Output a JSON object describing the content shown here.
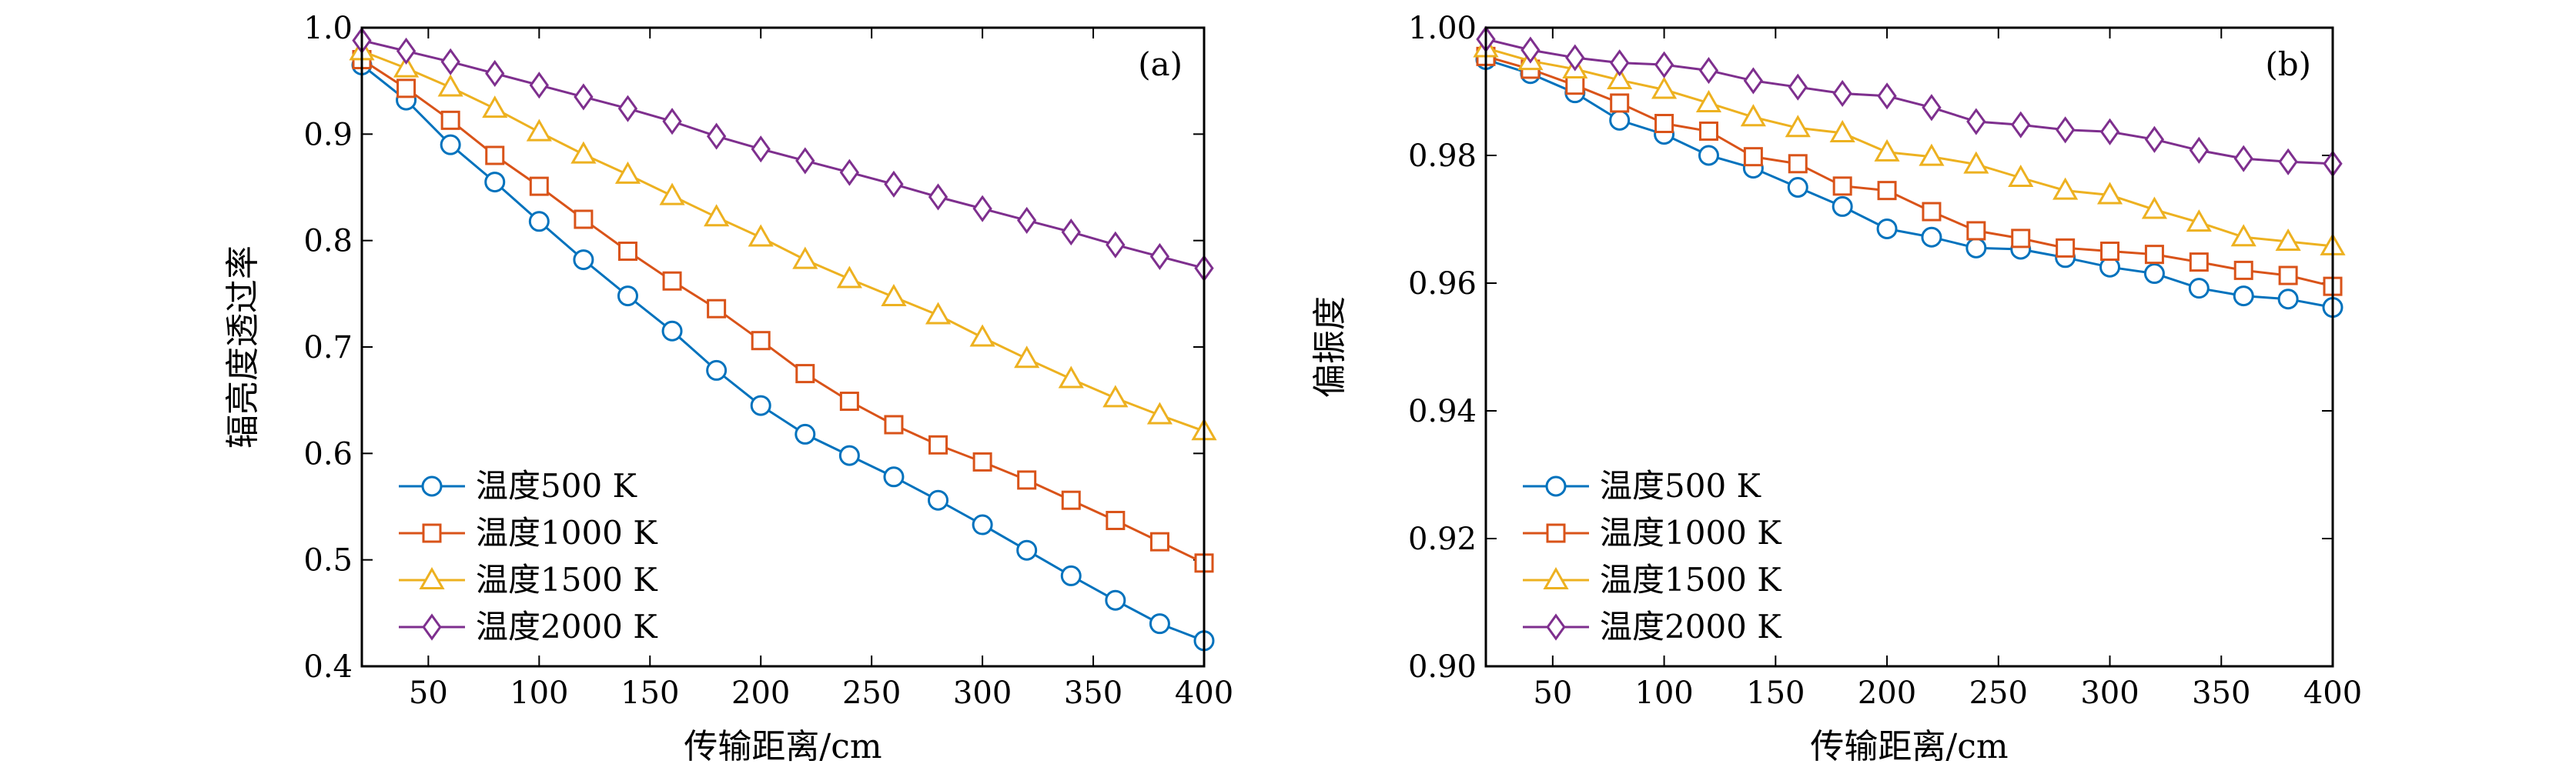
{
  "colors": {
    "s500": "#0072BD",
    "s1000": "#D95319",
    "s1500": "#EDB120",
    "s2000": "#7E2F8E"
  },
  "chart_data": [
    {
      "type": "line",
      "panel_label": "(a)",
      "xlabel": "传输距离/cm",
      "ylabel": "辐亮度透过率",
      "xlim": [
        20,
        400
      ],
      "ylim": [
        0.4,
        1.0
      ],
      "xticks": [
        50,
        100,
        150,
        200,
        250,
        300,
        350,
        400
      ],
      "xtick_labels": [
        "50",
        "100",
        "150",
        "200",
        "250",
        "300",
        "350",
        "400"
      ],
      "yticks": [
        0.4,
        0.5,
        0.6,
        0.7,
        0.8,
        0.9,
        1.0
      ],
      "ytick_labels": [
        "0.4",
        "0.5",
        "0.6",
        "0.7",
        "0.8",
        "0.9",
        "1.0"
      ],
      "legend_position": "bottom-left",
      "x": [
        20,
        40,
        60,
        80,
        100,
        120,
        140,
        160,
        180,
        200,
        220,
        240,
        260,
        280,
        300,
        320,
        340,
        360,
        380,
        400
      ],
      "series": [
        {
          "name": "温度500 K",
          "marker": "circle",
          "color_key": "s500",
          "values": [
            0.965,
            0.932,
            0.89,
            0.855,
            0.818,
            0.782,
            0.748,
            0.715,
            0.678,
            0.645,
            0.618,
            0.598,
            0.578,
            0.556,
            0.533,
            0.509,
            0.485,
            0.462,
            0.44,
            0.424
          ]
        },
        {
          "name": "温度1000 K",
          "marker": "square",
          "color_key": "s1000",
          "values": [
            0.97,
            0.943,
            0.913,
            0.88,
            0.851,
            0.82,
            0.79,
            0.762,
            0.736,
            0.706,
            0.675,
            0.649,
            0.627,
            0.608,
            0.592,
            0.575,
            0.556,
            0.537,
            0.517,
            0.497
          ]
        },
        {
          "name": "温度1500 K",
          "marker": "triangle",
          "color_key": "s1500",
          "values": [
            0.978,
            0.962,
            0.944,
            0.924,
            0.902,
            0.881,
            0.862,
            0.842,
            0.822,
            0.803,
            0.782,
            0.764,
            0.747,
            0.73,
            0.709,
            0.689,
            0.67,
            0.652,
            0.636,
            0.621
          ]
        },
        {
          "name": "温度2000 K",
          "marker": "diamond",
          "color_key": "s2000",
          "values": [
            0.988,
            0.978,
            0.968,
            0.957,
            0.946,
            0.935,
            0.924,
            0.912,
            0.898,
            0.886,
            0.875,
            0.864,
            0.853,
            0.841,
            0.83,
            0.819,
            0.808,
            0.796,
            0.785,
            0.774
          ]
        }
      ]
    },
    {
      "type": "line",
      "panel_label": "(b)",
      "xlabel": "传输距离/cm",
      "ylabel": "偏振度",
      "xlim": [
        20,
        400
      ],
      "ylim": [
        0.9,
        1.0
      ],
      "xticks": [
        50,
        100,
        150,
        200,
        250,
        300,
        350,
        400
      ],
      "xtick_labels": [
        "50",
        "100",
        "150",
        "200",
        "250",
        "300",
        "350",
        "400"
      ],
      "yticks": [
        0.9,
        0.92,
        0.94,
        0.96,
        0.98,
        1.0
      ],
      "ytick_labels": [
        "0.90",
        "0.92",
        "0.94",
        "0.96",
        "0.98",
        "1.00"
      ],
      "legend_position": "bottom-left",
      "x": [
        20,
        40,
        60,
        80,
        100,
        120,
        140,
        160,
        180,
        200,
        220,
        240,
        260,
        280,
        300,
        320,
        340,
        360,
        380,
        400
      ],
      "series": [
        {
          "name": "温度500 K",
          "marker": "circle",
          "color_key": "s500",
          "values": [
            0.995,
            0.9928,
            0.9898,
            0.9855,
            0.9833,
            0.98,
            0.978,
            0.975,
            0.972,
            0.9685,
            0.9672,
            0.9655,
            0.9653,
            0.964,
            0.9625,
            0.9615,
            0.9592,
            0.958,
            0.9575,
            0.9562
          ]
        },
        {
          "name": "温度1000 K",
          "marker": "square",
          "color_key": "s1000",
          "values": [
            0.9955,
            0.9935,
            0.991,
            0.9882,
            0.985,
            0.9838,
            0.9798,
            0.9787,
            0.9752,
            0.9745,
            0.9712,
            0.9682,
            0.967,
            0.9655,
            0.965,
            0.9645,
            0.9633,
            0.962,
            0.9612,
            0.9595
          ]
        },
        {
          "name": "温度1500 K",
          "marker": "triangle",
          "color_key": "s1500",
          "values": [
            0.9968,
            0.9948,
            0.9935,
            0.9918,
            0.9903,
            0.9882,
            0.986,
            0.9843,
            0.9835,
            0.9805,
            0.9798,
            0.9786,
            0.9765,
            0.9745,
            0.9738,
            0.9715,
            0.9695,
            0.9672,
            0.9665,
            0.9658
          ]
        },
        {
          "name": "温度2000 K",
          "marker": "diamond",
          "color_key": "s2000",
          "values": [
            0.9982,
            0.9965,
            0.9953,
            0.9945,
            0.9942,
            0.9933,
            0.9917,
            0.9907,
            0.9897,
            0.9893,
            0.9875,
            0.9853,
            0.9848,
            0.984,
            0.9837,
            0.9825,
            0.9808,
            0.9795,
            0.979,
            0.9787
          ]
        }
      ]
    }
  ]
}
